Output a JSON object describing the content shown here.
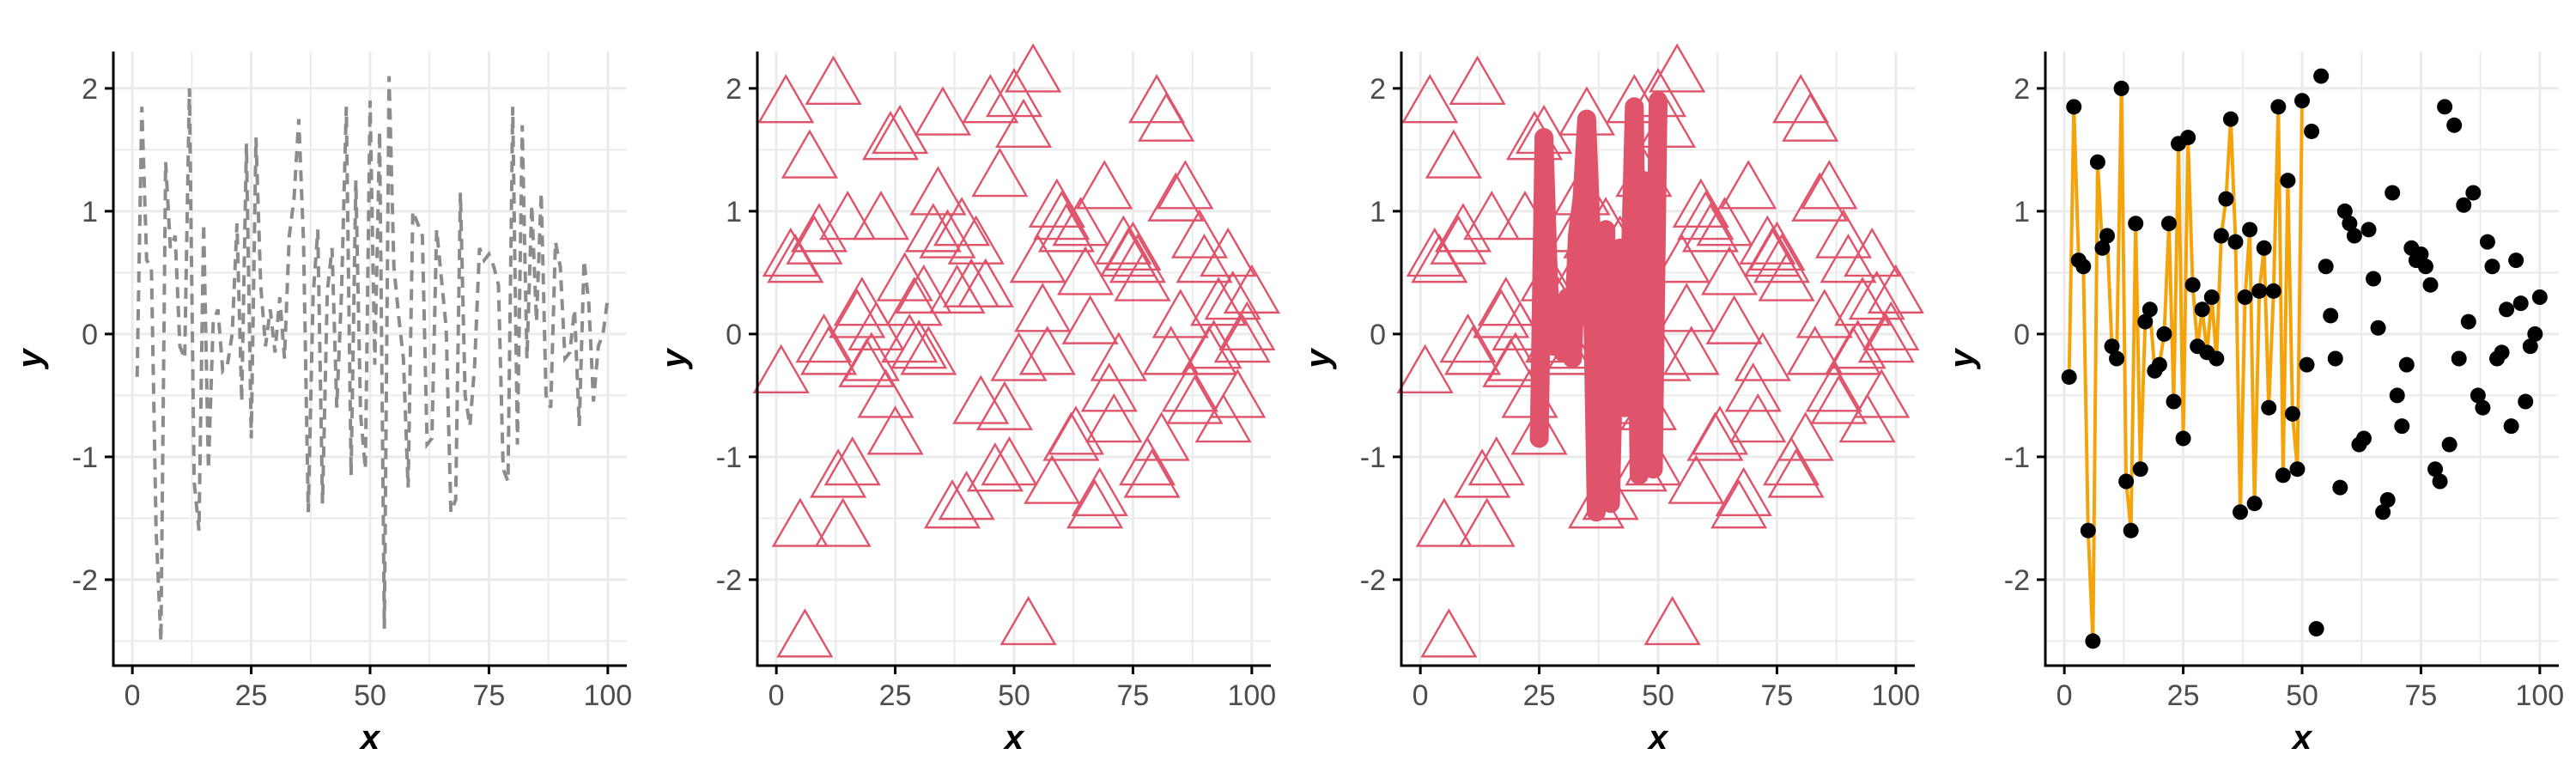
{
  "colors": {
    "background": "#ffffff",
    "grid": "#ebebeb",
    "axis": "#000000",
    "tick_text": "#4d4d4d",
    "dashed_line": "#8c8c8c",
    "triangle": "#df536b",
    "connect_line": "#f5a30a",
    "point": "#000000"
  },
  "chart_data": [
    {
      "type": "line",
      "style": "dashed gray line",
      "xlabel": "x",
      "ylabel": "y",
      "xlim": [
        -4,
        104
      ],
      "ylim": [
        -2.7,
        2.3
      ],
      "xticks": [
        0,
        25,
        50,
        75,
        100
      ],
      "yticks": [
        -2,
        -1,
        0,
        1,
        2
      ],
      "grid": true,
      "series": [
        {
          "x": [
            1,
            2,
            3,
            4,
            5,
            6,
            7,
            8,
            9,
            10,
            11,
            12,
            13,
            14,
            15,
            16,
            17,
            18,
            19,
            20,
            21,
            22,
            23,
            24,
            25,
            26,
            27,
            28,
            29,
            30,
            31,
            32,
            33,
            34,
            35,
            36,
            37,
            38,
            39,
            40,
            41,
            42,
            43,
            44,
            45,
            46,
            47,
            48,
            49,
            50,
            51,
            52,
            53,
            54,
            55,
            56,
            57,
            58,
            59,
            60,
            61,
            62,
            63,
            64,
            65,
            66,
            67,
            68,
            69,
            70,
            71,
            72,
            73,
            74,
            75,
            76,
            77,
            78,
            79,
            80,
            81,
            82,
            83,
            84,
            85,
            86,
            87,
            88,
            89,
            90,
            91,
            92,
            93,
            94,
            95,
            96,
            97,
            98,
            99,
            100
          ],
          "values": [
            -0.35,
            1.85,
            0.6,
            0.55,
            -1.6,
            -2.5,
            1.4,
            0.7,
            0.8,
            -0.1,
            -0.2,
            2.0,
            -1.2,
            -1.6,
            0.9,
            -1.1,
            0.1,
            0.2,
            -0.3,
            -0.25,
            0.0,
            0.9,
            -0.55,
            1.55,
            -0.85,
            1.6,
            0.4,
            -0.1,
            0.2,
            -0.15,
            0.3,
            -0.2,
            0.8,
            1.1,
            1.75,
            0.75,
            -1.45,
            0.3,
            0.85,
            -1.38,
            0.35,
            0.7,
            -0.6,
            0.35,
            1.85,
            -1.15,
            1.25,
            -0.65,
            -1.1,
            1.9,
            -0.25,
            1.65,
            -2.4,
            2.1,
            0.55,
            0.15,
            -0.2,
            -1.25,
            1.0,
            0.9,
            0.8,
            -0.9,
            -0.85,
            0.85,
            0.45,
            0.05,
            -1.45,
            -1.35,
            1.15,
            -0.5,
            -0.75,
            -0.25,
            0.7,
            0.6,
            0.65,
            0.55,
            0.4,
            -1.1,
            -1.2,
            1.85,
            -0.9,
            1.7,
            -0.2,
            1.05,
            0.1,
            1.15,
            -0.5,
            -0.6,
            0.75,
            0.55,
            -0.2,
            -0.15,
            0.2,
            -0.75,
            0.6,
            0.25,
            -0.55,
            -0.1,
            0.0,
            0.3
          ]
        }
      ]
    },
    {
      "type": "scatter",
      "style": "open red triangles",
      "xlabel": "x",
      "ylabel": "y",
      "xlim": [
        -4,
        104
      ],
      "ylim": [
        -2.7,
        2.3
      ],
      "xticks": [
        0,
        25,
        50,
        75,
        100
      ],
      "yticks": [
        -2,
        -1,
        0,
        1,
        2
      ],
      "grid": true,
      "series": [
        {
          "x": "same as panel 1",
          "values": "same as panel 1"
        }
      ]
    },
    {
      "type": "scatter",
      "style": "open red triangles with thick red line over x 25-50",
      "xlabel": "x",
      "ylabel": "y",
      "xlim": [
        -4,
        104
      ],
      "ylim": [
        -2.7,
        2.3
      ],
      "xticks": [
        0,
        25,
        50,
        75,
        100
      ],
      "yticks": [
        -2,
        -1,
        0,
        1,
        2
      ],
      "grid": true,
      "highlight_range": [
        25,
        50
      ],
      "series": [
        {
          "x": "same as panel 1",
          "values": "same as panel 1"
        }
      ]
    },
    {
      "type": "scatter",
      "style": "black points, orange connecting line for x 1-50",
      "xlabel": "x",
      "ylabel": "y",
      "xlim": [
        -4,
        104
      ],
      "ylim": [
        -2.7,
        2.3
      ],
      "xticks": [
        0,
        25,
        50,
        75,
        100
      ],
      "yticks": [
        -2,
        -1,
        0,
        1,
        2
      ],
      "grid": true,
      "line_range": [
        1,
        50
      ],
      "series": [
        {
          "x": "same as panel 1",
          "values": "same as panel 1"
        }
      ]
    }
  ]
}
